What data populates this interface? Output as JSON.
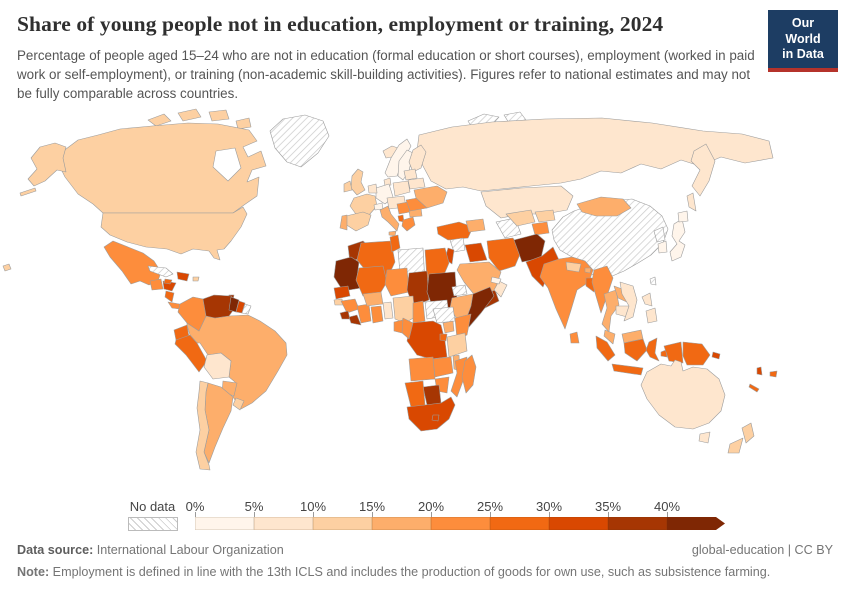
{
  "header": {
    "title": "Share of young people not in education, employment or training, 2024",
    "subtitle": "Percentage of people aged 15–24 who are not in education (formal education or short courses), employment (worked in paid work or self-employment), or training (non-academic skill-building activities). Figures refer to national estimates and may not be fully comparable across countries.",
    "logo": {
      "line1": "Our World",
      "line2": "in Data",
      "bg_color": "#1d3d63",
      "accent_color": "#b5332b"
    }
  },
  "chart_data": {
    "type": "heatmap",
    "subtype": "world-choropleth",
    "title": "Share of young people not in education, employment or training, 2024",
    "unit": "%",
    "legend": {
      "no_data_label": "No data",
      "ticks": [
        "0%",
        "5%",
        "10%",
        "15%",
        "20%",
        "25%",
        "30%",
        "35%",
        "40%"
      ],
      "bin_labels": [
        "0-5%",
        "5-10%",
        "10-15%",
        "15-20%",
        "20-25%",
        "25-30%",
        "30-35%",
        "35-40%",
        "40%+"
      ],
      "colors": [
        "#fff5eb",
        "#fee6ce",
        "#fdd0a2",
        "#fdae6b",
        "#fd8d3c",
        "#f16913",
        "#d94801",
        "#a63603",
        "#7f2704"
      ],
      "no_data_pattern": "diagonal-hatch"
    },
    "regions": [
      {
        "id": "greenland",
        "name": "Greenland",
        "bin": 0
      },
      {
        "id": "canada",
        "name": "Canada",
        "bin": 3
      },
      {
        "id": "canada-arctic1",
        "name": "Canada (Arctic islands)",
        "bin": 3
      },
      {
        "id": "canada-arctic2",
        "name": "Canada (Arctic islands)",
        "bin": 3
      },
      {
        "id": "canada-arctic3",
        "name": "Canada (Arctic islands)",
        "bin": 3
      },
      {
        "id": "canada-arctic4",
        "name": "Canada (Arctic islands)",
        "bin": 3
      },
      {
        "id": "alaska",
        "name": "United States (Alaska)",
        "bin": 3
      },
      {
        "id": "aleutians",
        "name": "United States (Aleutians)",
        "bin": 3
      },
      {
        "id": "usa",
        "name": "United States",
        "bin": 3
      },
      {
        "id": "hawaii",
        "name": "United States (Hawaii)",
        "bin": 3
      },
      {
        "id": "mexico",
        "name": "Mexico",
        "bin": 5
      },
      {
        "id": "guatemala",
        "name": "Guatemala",
        "bin": 5
      },
      {
        "id": "honduras",
        "name": "Honduras",
        "bin": 7
      },
      {
        "id": "nicaragua",
        "name": "Nicaragua",
        "bin": 6
      },
      {
        "id": "costa-panama",
        "name": "Costa Rica / Panama",
        "bin": 5
      },
      {
        "id": "cuba",
        "name": "Cuba",
        "bin": 0
      },
      {
        "id": "jamaica",
        "name": "Jamaica",
        "bin": 6
      },
      {
        "id": "hispaniola",
        "name": "Haiti / Dominican Republic",
        "bin": 7
      },
      {
        "id": "puerto-rico",
        "name": "Puerto Rico",
        "bin": 3
      },
      {
        "id": "trinidad",
        "name": "Trinidad and Tobago",
        "bin": 8
      },
      {
        "id": "colombia",
        "name": "Colombia",
        "bin": 5
      },
      {
        "id": "venezuela",
        "name": "Venezuela",
        "bin": 8
      },
      {
        "id": "guyana",
        "name": "Guyana",
        "bin": 9
      },
      {
        "id": "suriname",
        "name": "Suriname",
        "bin": 7
      },
      {
        "id": "french-guiana",
        "name": "French Guiana",
        "bin": 0
      },
      {
        "id": "ecuador",
        "name": "Ecuador",
        "bin": 6
      },
      {
        "id": "peru",
        "name": "Peru",
        "bin": 6
      },
      {
        "id": "bolivia",
        "name": "Bolivia",
        "bin": 2
      },
      {
        "id": "brazil",
        "name": "Brazil",
        "bin": 4
      },
      {
        "id": "paraguay",
        "name": "Paraguay",
        "bin": 4
      },
      {
        "id": "uruguay",
        "name": "Uruguay",
        "bin": 3
      },
      {
        "id": "argentina",
        "name": "Argentina",
        "bin": 4
      },
      {
        "id": "chile",
        "name": "Chile",
        "bin": 3
      },
      {
        "id": "iceland",
        "name": "Iceland",
        "bin": 2
      },
      {
        "id": "norway",
        "name": "Norway",
        "bin": 1
      },
      {
        "id": "sweden",
        "name": "Sweden",
        "bin": 1
      },
      {
        "id": "finland",
        "name": "Finland",
        "bin": 2
      },
      {
        "id": "denmark",
        "name": "Denmark",
        "bin": 2
      },
      {
        "id": "uk",
        "name": "United Kingdom",
        "bin": 3
      },
      {
        "id": "ireland",
        "name": "Ireland",
        "bin": 3
      },
      {
        "id": "france",
        "name": "France",
        "bin": 3
      },
      {
        "id": "spain",
        "name": "Spain",
        "bin": 3
      },
      {
        "id": "portugal",
        "name": "Portugal",
        "bin": 4
      },
      {
        "id": "germany",
        "name": "Germany",
        "bin": 1
      },
      {
        "id": "benelux",
        "name": "Benelux",
        "bin": 2
      },
      {
        "id": "poland",
        "name": "Poland",
        "bin": 2
      },
      {
        "id": "central-europe",
        "name": "Central Europe",
        "bin": 2
      },
      {
        "id": "switzerland",
        "name": "Switzerland",
        "bin": 1
      },
      {
        "id": "italy",
        "name": "Italy",
        "bin": 4
      },
      {
        "id": "sicily",
        "name": "Italy (Sicily)",
        "bin": 4
      },
      {
        "id": "balkans",
        "name": "Western Balkans",
        "bin": 5
      },
      {
        "id": "albania",
        "name": "Albania",
        "bin": 6
      },
      {
        "id": "greece",
        "name": "Greece",
        "bin": 5
      },
      {
        "id": "bulgaria",
        "name": "Bulgaria",
        "bin": 4
      },
      {
        "id": "romania",
        "name": "Romania",
        "bin": 5
      },
      {
        "id": "ukraine",
        "name": "Ukraine",
        "bin": 4
      },
      {
        "id": "belarus",
        "name": "Belarus",
        "bin": 2
      },
      {
        "id": "baltics",
        "name": "Baltic states",
        "bin": 2
      },
      {
        "id": "russia",
        "name": "Russia",
        "bin": 2
      },
      {
        "id": "kamchatka",
        "name": "Russia (Kamchatka)",
        "bin": 2
      },
      {
        "id": "sakhalin",
        "name": "Russia (Sakhalin)",
        "bin": 2
      },
      {
        "id": "svalbard1",
        "name": "Svalbard",
        "bin": 0
      },
      {
        "id": "svalbard2",
        "name": "Svalbard (east)",
        "bin": 0
      },
      {
        "id": "turkey",
        "name": "Turkey",
        "bin": 6
      },
      {
        "id": "caucasus",
        "name": "Caucasus",
        "bin": 4
      },
      {
        "id": "syria",
        "name": "Syria",
        "bin": 0
      },
      {
        "id": "levant",
        "name": "Israel / Jordan",
        "bin": 7
      },
      {
        "id": "iraq",
        "name": "Iraq",
        "bin": 7
      },
      {
        "id": "iran",
        "name": "Iran",
        "bin": 6
      },
      {
        "id": "saudi",
        "name": "Saudi Arabia",
        "bin": 4
      },
      {
        "id": "yemen",
        "name": "Yemen",
        "bin": 8
      },
      {
        "id": "oman",
        "name": "Oman",
        "bin": 2
      },
      {
        "id": "gulf-states",
        "name": "Gulf states",
        "bin": 1
      },
      {
        "id": "kazakhstan",
        "name": "Kazakhstan",
        "bin": 2
      },
      {
        "id": "turkmenistan",
        "name": "Turkmenistan",
        "bin": 0
      },
      {
        "id": "uzbekistan",
        "name": "Uzbekistan",
        "bin": 3
      },
      {
        "id": "kyrgyzstan",
        "name": "Kyrgyzstan",
        "bin": 3
      },
      {
        "id": "tajikistan",
        "name": "Tajikistan",
        "bin": 5
      },
      {
        "id": "afghanistan",
        "name": "Afghanistan",
        "bin": 9
      },
      {
        "id": "pakistan",
        "name": "Pakistan",
        "bin": 7
      },
      {
        "id": "india",
        "name": "India",
        "bin": 5
      },
      {
        "id": "nepal",
        "name": "Nepal",
        "bin": 3
      },
      {
        "id": "bhutan",
        "name": "Bhutan",
        "bin": 4
      },
      {
        "id": "bangladesh",
        "name": "Bangladesh",
        "bin": 6
      },
      {
        "id": "sri-lanka",
        "name": "Sri Lanka",
        "bin": 5
      },
      {
        "id": "myanmar",
        "name": "Myanmar",
        "bin": 5
      },
      {
        "id": "thailand",
        "name": "Thailand",
        "bin": 4
      },
      {
        "id": "laos",
        "name": "Laos",
        "bin": 4
      },
      {
        "id": "cambodia",
        "name": "Cambodia",
        "bin": 2
      },
      {
        "id": "vietnam",
        "name": "Vietnam",
        "bin": 2
      },
      {
        "id": "malaysia",
        "name": "Malaysia",
        "bin": 4
      },
      {
        "id": "borneo-my",
        "name": "Malaysia (Borneo)",
        "bin": 4
      },
      {
        "id": "borneo-id",
        "name": "Indonesia (Kalimantan)",
        "bin": 6
      },
      {
        "id": "sumatra",
        "name": "Indonesia (Sumatra)",
        "bin": 6
      },
      {
        "id": "java",
        "name": "Indonesia (Java)",
        "bin": 6
      },
      {
        "id": "sulawesi",
        "name": "Indonesia (Sulawesi)",
        "bin": 6
      },
      {
        "id": "lesser-sunda",
        "name": "Indonesia (Lesser Sunda)",
        "bin": 6
      },
      {
        "id": "moluccas",
        "name": "Indonesia (Moluccas)",
        "bin": 6
      },
      {
        "id": "west-papua",
        "name": "Indonesia (Papua)",
        "bin": 6
      },
      {
        "id": "png",
        "name": "Papua New Guinea",
        "bin": 6
      },
      {
        "id": "philippines1",
        "name": "Philippines (Luzon)",
        "bin": 2
      },
      {
        "id": "philippines2",
        "name": "Philippines (Mindanao)",
        "bin": 2
      },
      {
        "id": "china",
        "name": "China",
        "bin": 0
      },
      {
        "id": "mongolia",
        "name": "Mongolia",
        "bin": 4
      },
      {
        "id": "north-korea",
        "name": "North Korea",
        "bin": 0
      },
      {
        "id": "south-korea",
        "name": "South Korea",
        "bin": 1
      },
      {
        "id": "japan",
        "name": "Japan",
        "bin": 1
      },
      {
        "id": "hokkaido",
        "name": "Japan (Hokkaido)",
        "bin": 1
      },
      {
        "id": "taiwan",
        "name": "Taiwan",
        "bin": 0
      },
      {
        "id": "morocco",
        "name": "Morocco",
        "bin": 8
      },
      {
        "id": "mauritania",
        "name": "Mauritania / Western Sahara",
        "bin": 9
      },
      {
        "id": "algeria",
        "name": "Algeria",
        "bin": 6
      },
      {
        "id": "tunisia",
        "name": "Tunisia",
        "bin": 6
      },
      {
        "id": "libya",
        "name": "Libya",
        "bin": 0
      },
      {
        "id": "egypt",
        "name": "Egypt",
        "bin": 6
      },
      {
        "id": "mali",
        "name": "Mali",
        "bin": 6
      },
      {
        "id": "niger",
        "name": "Niger",
        "bin": 5
      },
      {
        "id": "chad",
        "name": "Chad",
        "bin": 8
      },
      {
        "id": "sudan",
        "name": "Sudan",
        "bin": 9
      },
      {
        "id": "eritrea",
        "name": "Eritrea",
        "bin": 0
      },
      {
        "id": "ethiopia",
        "name": "Ethiopia",
        "bin": 4
      },
      {
        "id": "somalia",
        "name": "Somalia",
        "bin": 9
      },
      {
        "id": "senegal",
        "name": "Senegal",
        "bin": 7
      },
      {
        "id": "guinea-bissau",
        "name": "Guinea-Bissau",
        "bin": 3
      },
      {
        "id": "guinea",
        "name": "Guinea",
        "bin": 5
      },
      {
        "id": "sierra-leone",
        "name": "Sierra Leone",
        "bin": 8
      },
      {
        "id": "liberia",
        "name": "Liberia",
        "bin": 8
      },
      {
        "id": "ivory-coast",
        "name": "Côte d'Ivoire",
        "bin": 5
      },
      {
        "id": "burkina",
        "name": "Burkina Faso",
        "bin": 4
      },
      {
        "id": "ghana",
        "name": "Ghana",
        "bin": 5
      },
      {
        "id": "togo-benin",
        "name": "Togo / Benin",
        "bin": 2
      },
      {
        "id": "nigeria",
        "name": "Nigeria",
        "bin": 3
      },
      {
        "id": "cameroon",
        "name": "Cameroon",
        "bin": 5
      },
      {
        "id": "car",
        "name": "Central African Republic",
        "bin": 0
      },
      {
        "id": "south-sudan",
        "name": "South Sudan",
        "bin": 0
      },
      {
        "id": "uganda",
        "name": "Uganda",
        "bin": 4
      },
      {
        "id": "kenya",
        "name": "Kenya",
        "bin": 5
      },
      {
        "id": "rwanda-burundi",
        "name": "Rwanda / Burundi",
        "bin": 6
      },
      {
        "id": "drc",
        "name": "Democratic Republic of Congo",
        "bin": 7
      },
      {
        "id": "congo",
        "name": "Congo",
        "bin": 5
      },
      {
        "id": "gabon",
        "name": "Gabon",
        "bin": 5
      },
      {
        "id": "tanzania",
        "name": "Tanzania",
        "bin": 3
      },
      {
        "id": "angola",
        "name": "Angola",
        "bin": 5
      },
      {
        "id": "zambia",
        "name": "Zambia",
        "bin": 5
      },
      {
        "id": "malawi",
        "name": "Malawi",
        "bin": 4
      },
      {
        "id": "mozambique",
        "name": "Mozambique",
        "bin": 5
      },
      {
        "id": "zimbabwe",
        "name": "Zimbabwe",
        "bin": 5
      },
      {
        "id": "botswana",
        "name": "Botswana",
        "bin": 8
      },
      {
        "id": "namibia",
        "name": "Namibia",
        "bin": 6
      },
      {
        "id": "south-africa",
        "name": "South Africa",
        "bin": 7
      },
      {
        "id": "lesotho",
        "name": "Lesotho",
        "bin": 7
      },
      {
        "id": "madagascar",
        "name": "Madagascar",
        "bin": 5
      },
      {
        "id": "australia",
        "name": "Australia",
        "bin": 2
      },
      {
        "id": "tasmania",
        "name": "Australia (Tasmania)",
        "bin": 2
      },
      {
        "id": "nz-north",
        "name": "New Zealand (North Island)",
        "bin": 3
      },
      {
        "id": "nz-south",
        "name": "New Zealand (South Island)",
        "bin": 3
      },
      {
        "id": "fiji",
        "name": "Fiji",
        "bin": 6
      },
      {
        "id": "vanuatu",
        "name": "Vanuatu",
        "bin": 7
      },
      {
        "id": "new-caledonia",
        "name": "New Caledonia",
        "bin": 6
      },
      {
        "id": "solomon",
        "name": "Solomon Islands",
        "bin": 7
      }
    ]
  },
  "footer": {
    "datasource_label": "Data source:",
    "datasource": " International Labour Organization",
    "attribution": "global-education | CC BY",
    "note_label": "Note:",
    "note": " Employment is defined in line with the 13th ICLS and includes the production of goods for own use, such as subsistence farming."
  }
}
